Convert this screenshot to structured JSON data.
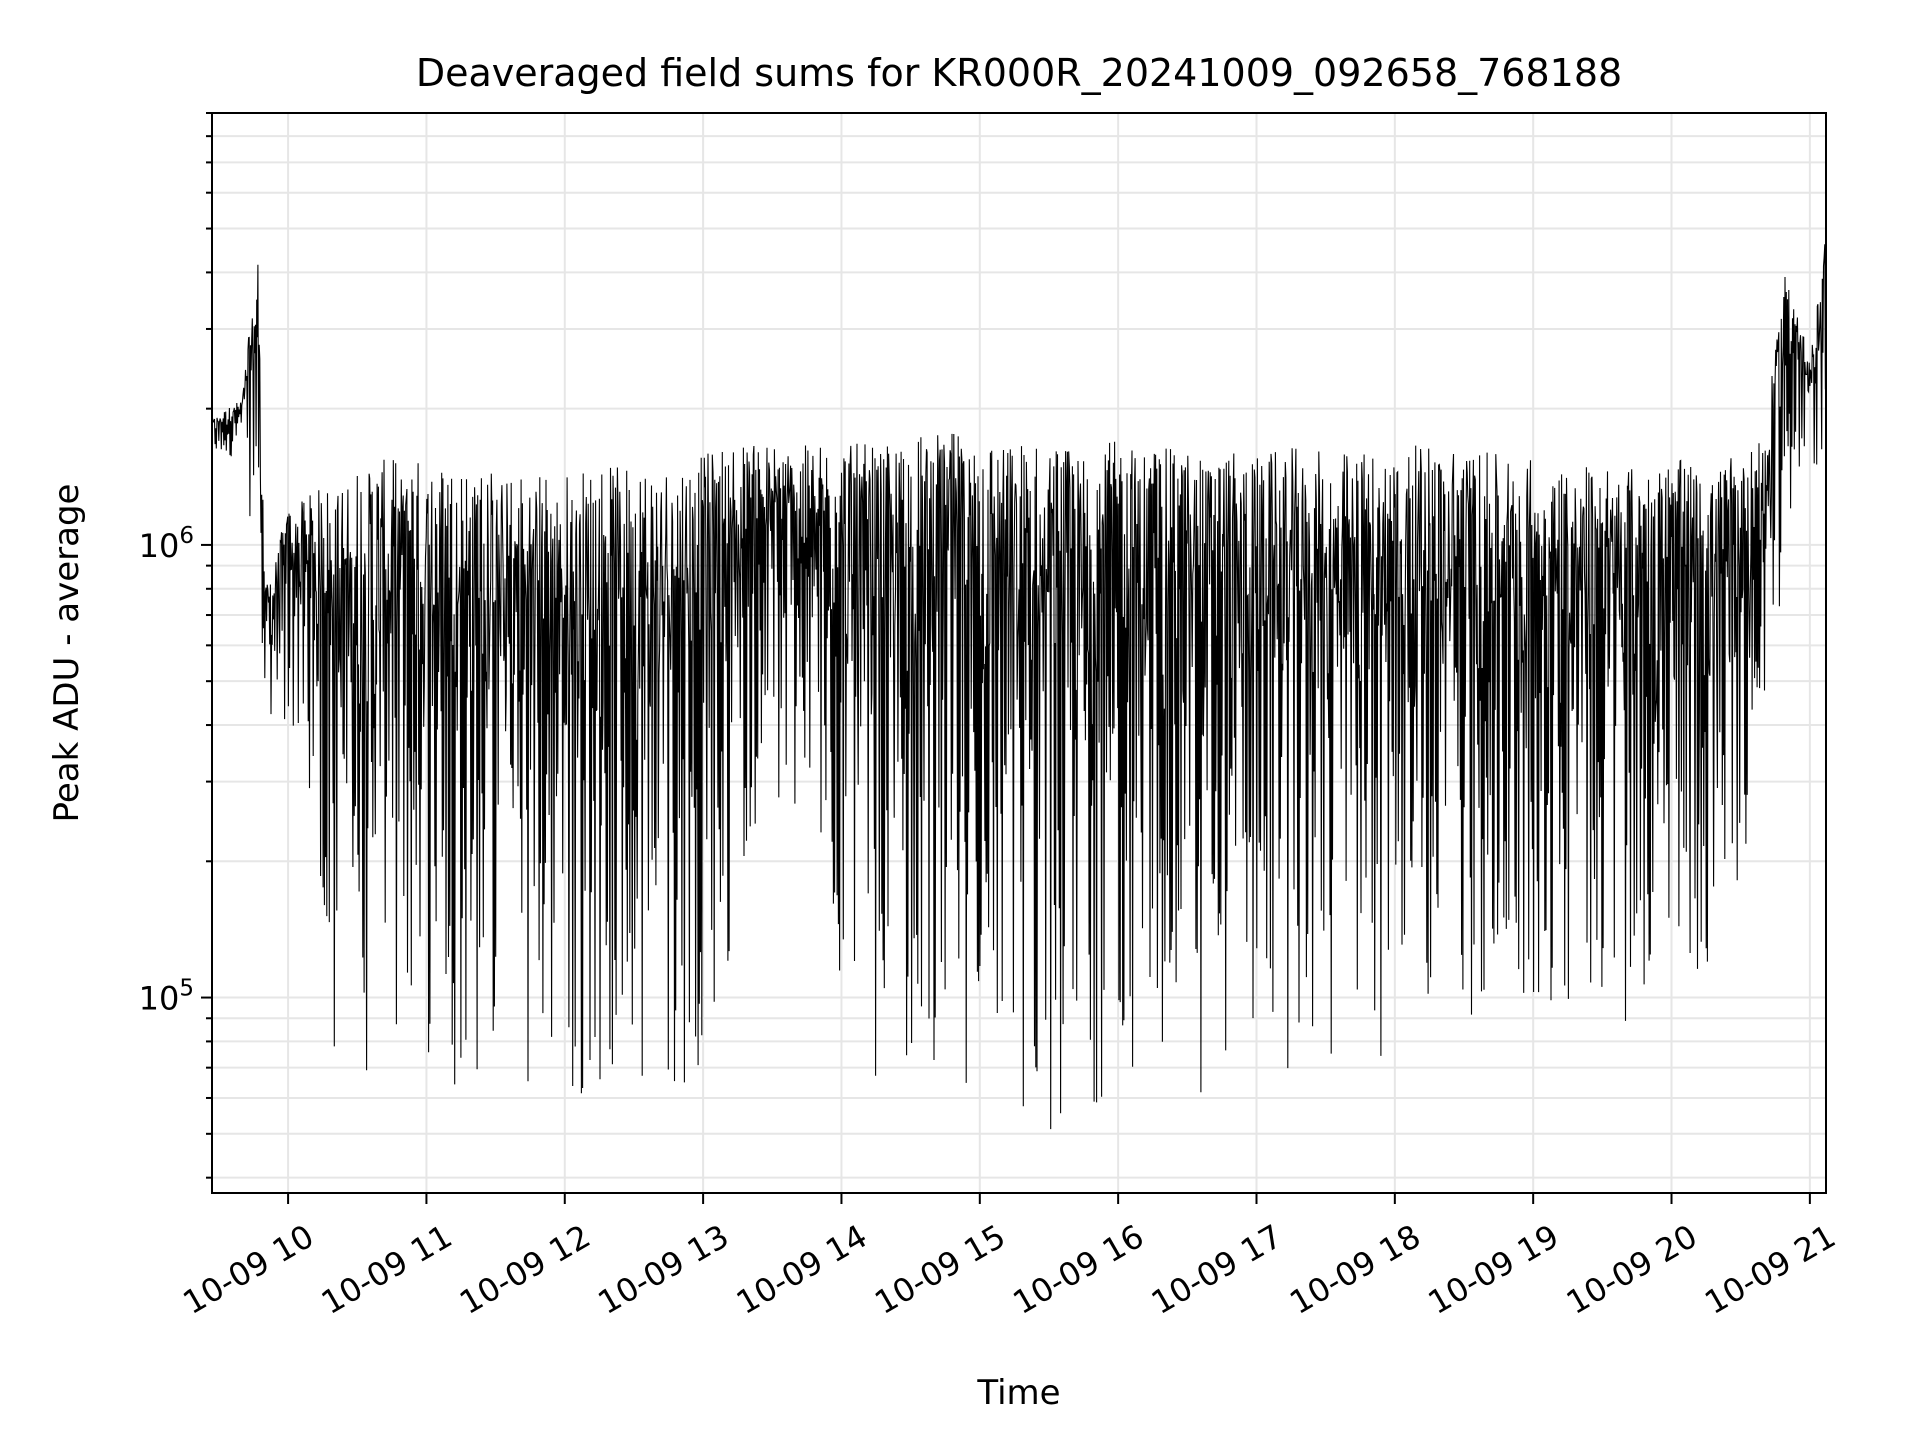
{
  "chart_data": {
    "type": "line",
    "title": "Deaveraged field sums for KR000R_20241009_092658_768188",
    "xlabel": "Time",
    "ylabel": "Peak ADU - average",
    "yscale": "log",
    "xlim": [
      "2024-10-09 09:27",
      "2024-10-09 21:07"
    ],
    "ylim": [
      37000,
      9000000
    ],
    "grid": true,
    "line_color": "#000000",
    "xtick_labels": [
      "10-09 10",
      "10-09 11",
      "10-09 12",
      "10-09 13",
      "10-09 14",
      "10-09 15",
      "10-09 16",
      "10-09 17",
      "10-09 18",
      "10-09 19",
      "10-09 20",
      "10-09 21"
    ],
    "ytick_major_labels": [
      {
        "value": 100000,
        "base": "10",
        "exp": "5"
      },
      {
        "value": 1000000,
        "base": "10",
        "exp": "6"
      }
    ],
    "series": [
      {
        "description": "approximate envelope of the dense trace; sampled every ~10 minutes",
        "x": [
          "2024-10-09 09:27",
          "2024-10-09 09:40",
          "2024-10-09 09:47",
          "2024-10-09 09:50",
          "2024-10-09 10:00",
          "2024-10-09 10:10",
          "2024-10-09 10:20",
          "2024-10-09 10:30",
          "2024-10-09 10:40",
          "2024-10-09 10:50",
          "2024-10-09 11:00",
          "2024-10-09 11:20",
          "2024-10-09 11:40",
          "2024-10-09 12:00",
          "2024-10-09 12:20",
          "2024-10-09 12:40",
          "2024-10-09 13:00",
          "2024-10-09 13:20",
          "2024-10-09 13:40",
          "2024-10-09 14:00",
          "2024-10-09 14:20",
          "2024-10-09 14:40",
          "2024-10-09 15:00",
          "2024-10-09 15:20",
          "2024-10-09 15:40",
          "2024-10-09 16:00",
          "2024-10-09 16:20",
          "2024-10-09 16:40",
          "2024-10-09 17:00",
          "2024-10-09 17:20",
          "2024-10-09 17:40",
          "2024-10-09 18:00",
          "2024-10-09 18:20",
          "2024-10-09 18:40",
          "2024-10-09 19:00",
          "2024-10-09 19:20",
          "2024-10-09 19:40",
          "2024-10-09 20:00",
          "2024-10-09 20:20",
          "2024-10-09 20:40",
          "2024-10-09 20:50",
          "2024-10-09 21:00",
          "2024-10-09 21:07"
        ],
        "high": [
          1900000,
          2100000,
          4500000,
          800000,
          1200000,
          1300000,
          1400000,
          1500000,
          1550000,
          1550000,
          1550000,
          1500000,
          1450000,
          1450000,
          1500000,
          1500000,
          1600000,
          1700000,
          1650000,
          1700000,
          1650000,
          1800000,
          1750000,
          1700000,
          1650000,
          1700000,
          1650000,
          1600000,
          1600000,
          1650000,
          1600000,
          1650000,
          1700000,
          1600000,
          1550000,
          1500000,
          1500000,
          1550000,
          1500000,
          1700000,
          4300000,
          2500000,
          5000000
        ],
        "low": [
          1500000,
          1600000,
          800000,
          350000,
          350000,
          280000,
          60000,
          55000,
          70000,
          85000,
          70000,
          60000,
          65000,
          60000,
          58000,
          60000,
          65000,
          200000,
          250000,
          90000,
          55000,
          70000,
          60000,
          50000,
          48000,
          65000,
          55000,
          60000,
          70000,
          65000,
          60000,
          80000,
          90000,
          80000,
          80000,
          90000,
          85000,
          80000,
          75000,
          350000,
          1000000,
          1400000,
          1500000
        ]
      }
    ]
  }
}
